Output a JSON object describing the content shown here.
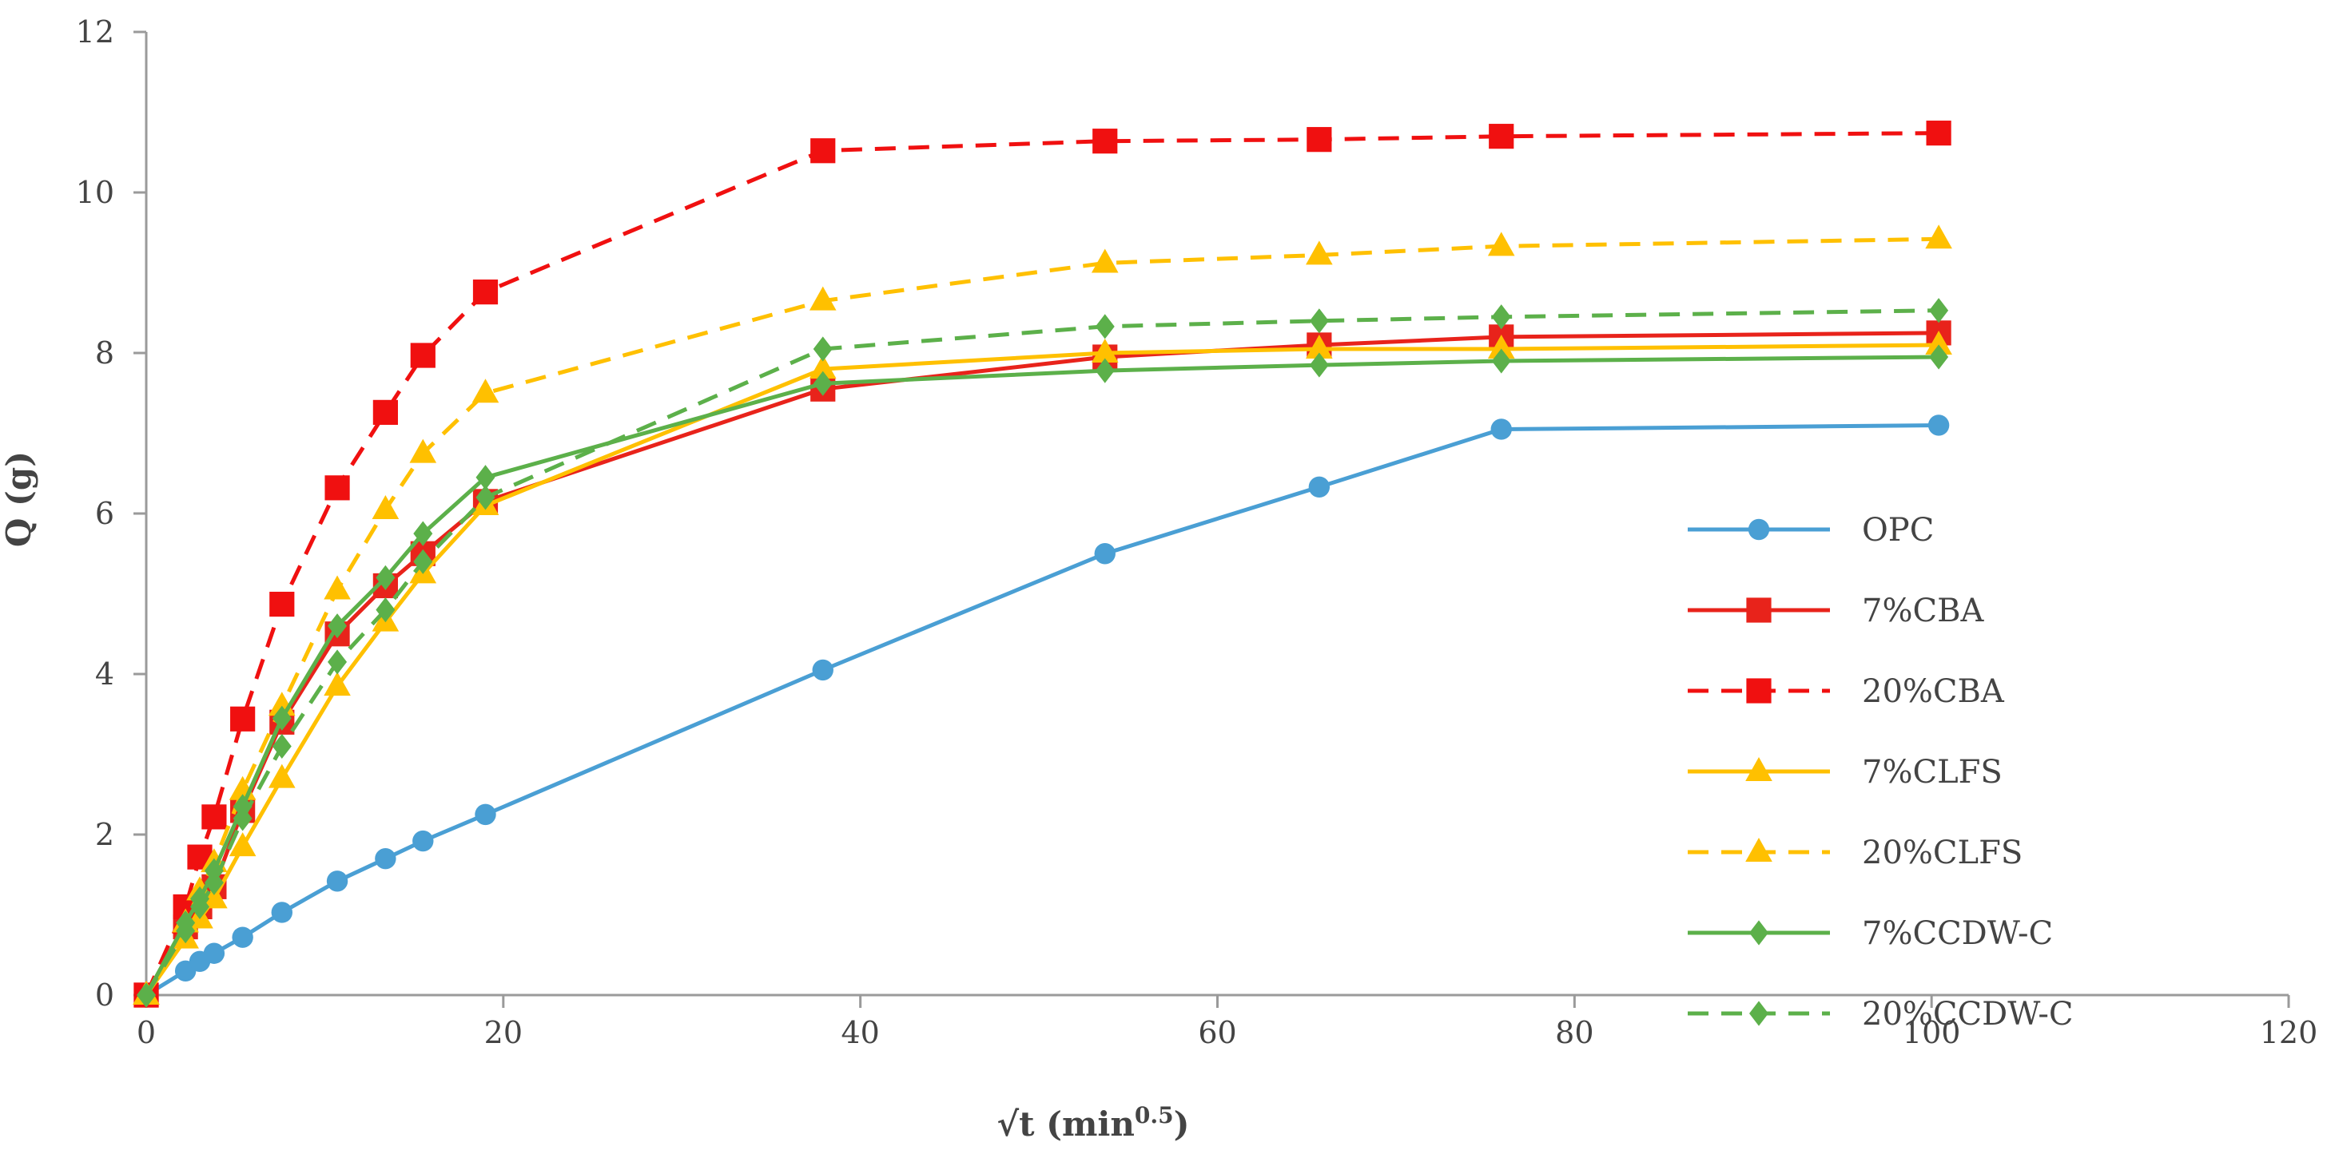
{
  "chart_data": {
    "type": "line",
    "title": "",
    "xlabel": "√t (min",
    "xlabel_sup": "0.5",
    "xlabel_close": ")",
    "ylabel": "Q (g)",
    "xlim": [
      0,
      120
    ],
    "ylim": [
      0,
      12
    ],
    "xticks": [
      0,
      20,
      40,
      60,
      80,
      100,
      120
    ],
    "yticks": [
      0,
      2,
      4,
      6,
      8,
      10,
      12
    ],
    "grid": false,
    "legend_position": "right",
    "series": [
      {
        "name": "OPC",
        "color": "#4a9fd4",
        "dashed": false,
        "marker": "circle",
        "x": [
          0,
          2.2,
          3,
          3.8,
          5.4,
          7.6,
          10.7,
          13.4,
          15.5,
          19,
          37.9,
          53.7,
          65.7,
          75.9,
          100.4
        ],
        "y": [
          0,
          0.3,
          0.42,
          0.52,
          0.72,
          1.03,
          1.42,
          1.7,
          1.92,
          2.25,
          4.05,
          5.5,
          6.33,
          7.05,
          7.1
        ]
      },
      {
        "name": "7%CBA",
        "color": "#e8231b",
        "dashed": false,
        "marker": "square",
        "x": [
          0,
          2.2,
          3,
          3.8,
          5.4,
          7.6,
          10.7,
          13.4,
          15.5,
          19,
          37.9,
          53.7,
          65.7,
          75.9,
          100.4
        ],
        "y": [
          0,
          0.85,
          1.1,
          1.35,
          2.3,
          3.4,
          4.5,
          5.1,
          5.5,
          6.15,
          7.55,
          7.95,
          8.1,
          8.2,
          8.25
        ]
      },
      {
        "name": "20%CBA",
        "color": "#f01010",
        "dashed": true,
        "marker": "square",
        "x": [
          0,
          2.2,
          3,
          3.8,
          5.4,
          7.6,
          10.7,
          13.4,
          15.5,
          19,
          37.9,
          53.7,
          65.7,
          75.9,
          100.4
        ],
        "y": [
          0,
          1.1,
          1.72,
          2.22,
          3.44,
          4.87,
          6.32,
          7.26,
          7.97,
          8.76,
          10.52,
          10.64,
          10.66,
          10.7,
          10.74
        ]
      },
      {
        "name": "7%CLFS",
        "color": "#ffc000",
        "dashed": false,
        "marker": "triangle",
        "x": [
          0,
          2.2,
          3,
          3.8,
          5.4,
          7.6,
          10.7,
          13.4,
          15.5,
          19,
          37.9,
          53.7,
          65.7,
          75.9,
          100.4
        ],
        "y": [
          0,
          0.7,
          0.95,
          1.2,
          1.85,
          2.7,
          3.85,
          4.65,
          5.25,
          6.1,
          7.8,
          8.0,
          8.05,
          8.05,
          8.1
        ]
      },
      {
        "name": "20%CLFS",
        "color": "#ffc000",
        "dashed": true,
        "marker": "triangle",
        "x": [
          0,
          2.2,
          3,
          3.8,
          5.4,
          7.6,
          10.7,
          13.4,
          15.5,
          19,
          37.9,
          53.7,
          65.7,
          75.9,
          100.4
        ],
        "y": [
          0,
          0.9,
          1.3,
          1.65,
          2.55,
          3.6,
          5.05,
          6.05,
          6.75,
          7.5,
          8.65,
          9.12,
          9.22,
          9.33,
          9.42
        ]
      },
      {
        "name": "7%CCDW-C",
        "color": "#5cb04a",
        "dashed": false,
        "marker": "diamond",
        "x": [
          0,
          2.2,
          3,
          3.8,
          5.4,
          7.6,
          10.7,
          13.4,
          15.5,
          19,
          37.9,
          53.7,
          65.7,
          75.9,
          100.4
        ],
        "y": [
          0,
          0.9,
          1.2,
          1.55,
          2.35,
          3.45,
          4.6,
          5.2,
          5.75,
          6.45,
          7.62,
          7.78,
          7.85,
          7.9,
          7.95
        ]
      },
      {
        "name": "20%CCDW-C",
        "color": "#5cb04a",
        "dashed": true,
        "marker": "diamond",
        "x": [
          0,
          2.2,
          3,
          3.8,
          5.4,
          7.6,
          10.7,
          13.4,
          15.5,
          19,
          37.9,
          53.7,
          65.7,
          75.9,
          100.4
        ],
        "y": [
          0,
          0.8,
          1.1,
          1.4,
          2.2,
          3.1,
          4.15,
          4.8,
          5.4,
          6.2,
          8.05,
          8.33,
          8.4,
          8.45,
          8.53
        ]
      }
    ]
  }
}
